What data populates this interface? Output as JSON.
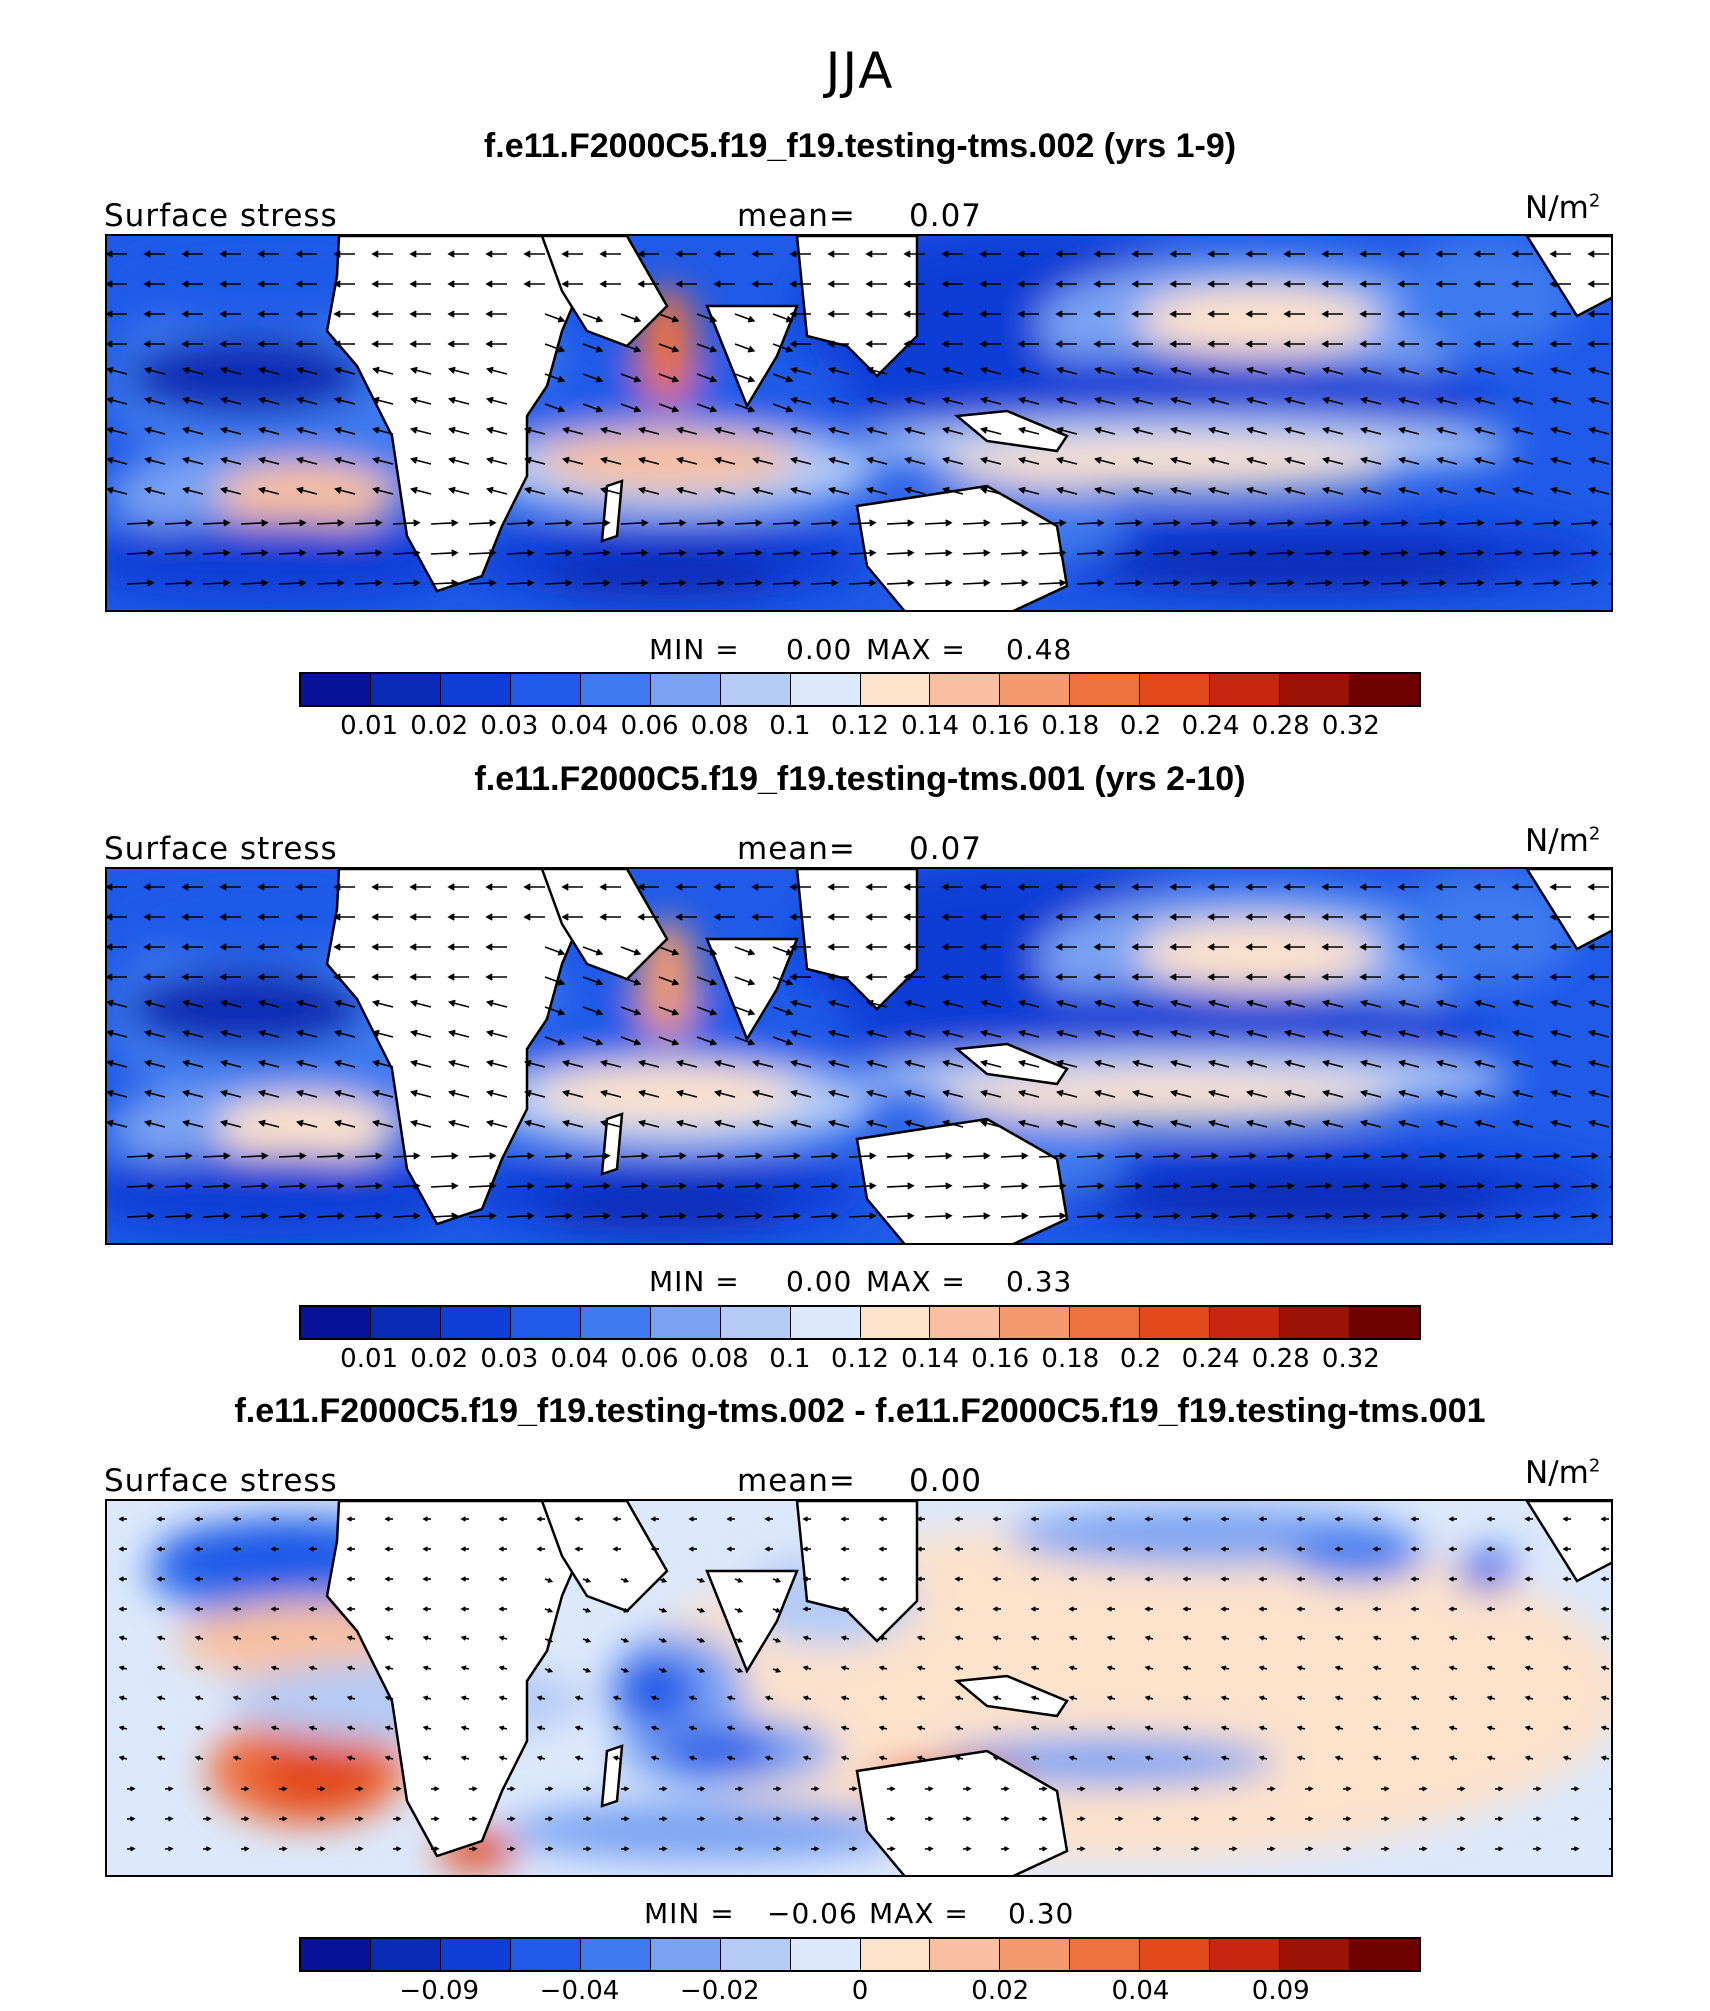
{
  "season": "JJA",
  "panels": [
    {
      "title": "f.e11.F2000C5.f19_f19.testing-tms.002 (yrs 1-9)",
      "variable": "Surface stress",
      "mean_label": "mean=",
      "mean_value": "0.07",
      "units": "N/m",
      "units_exp": "2",
      "min_label": "MIN =",
      "min_value": "0.00",
      "max_label": "MAX =",
      "max_value": "0.48",
      "ticks": [
        "0.01",
        "0.02",
        "0.03",
        "0.04",
        "0.06",
        "0.08",
        "0.1",
        "0.12",
        "0.14",
        "0.16",
        "0.18",
        "0.2",
        "0.24",
        "0.28",
        "0.32"
      ],
      "colors": [
        "#08139a",
        "#0a2bb5",
        "#0f3ed6",
        "#1f5ae8",
        "#3d7aef",
        "#7aa3f3",
        "#b4cbf6",
        "#dce8fb",
        "#fde2cc",
        "#f8c0a0",
        "#f39a6e",
        "#ee7140",
        "#e24a1d",
        "#c8260e",
        "#9c1206",
        "#6f0000"
      ],
      "type": "filled contour + vectors",
      "panel_kind": "field"
    },
    {
      "title": "f.e11.F2000C5.f19_f19.testing-tms.001 (yrs 2-10)",
      "variable": "Surface stress",
      "mean_label": "mean=",
      "mean_value": "0.07",
      "units": "N/m",
      "units_exp": "2",
      "min_label": "MIN =",
      "min_value": "0.00",
      "max_label": "MAX =",
      "max_value": "0.33",
      "ticks": [
        "0.01",
        "0.02",
        "0.03",
        "0.04",
        "0.06",
        "0.08",
        "0.1",
        "0.12",
        "0.14",
        "0.16",
        "0.18",
        "0.2",
        "0.24",
        "0.28",
        "0.32"
      ],
      "colors": [
        "#08139a",
        "#0a2bb5",
        "#0f3ed6",
        "#1f5ae8",
        "#3d7aef",
        "#7aa3f3",
        "#b4cbf6",
        "#dce8fb",
        "#fde2cc",
        "#f8c0a0",
        "#f39a6e",
        "#ee7140",
        "#e24a1d",
        "#c8260e",
        "#9c1206",
        "#6f0000"
      ],
      "type": "filled contour + vectors",
      "panel_kind": "field"
    },
    {
      "title": "f.e11.F2000C5.f19_f19.testing-tms.002 - f.e11.F2000C5.f19_f19.testing-tms.001",
      "variable": "Surface stress",
      "mean_label": "mean=",
      "mean_value": "0.00",
      "units": "N/m",
      "units_exp": "2",
      "min_label": "MIN =",
      "min_value": "−0.06",
      "max_label": "MAX =",
      "max_value": "0.30",
      "ticks": [
        "",
        "−0.09",
        "",
        "−0.04",
        "",
        "−0.02",
        "",
        "0",
        "",
        "0.02",
        "",
        "0.04",
        "",
        "0.09",
        ""
      ],
      "colors": [
        "#08139a",
        "#0a2bb5",
        "#0f3ed6",
        "#1f5ae8",
        "#3d7aef",
        "#7aa3f3",
        "#b4cbf6",
        "#dce8fb",
        "#fde2cc",
        "#f8c0a0",
        "#f39a6e",
        "#ee7140",
        "#e24a1d",
        "#c8260e",
        "#9c1206",
        "#6f0000"
      ],
      "type": "filled contour + vectors",
      "panel_kind": "difference"
    }
  ]
}
